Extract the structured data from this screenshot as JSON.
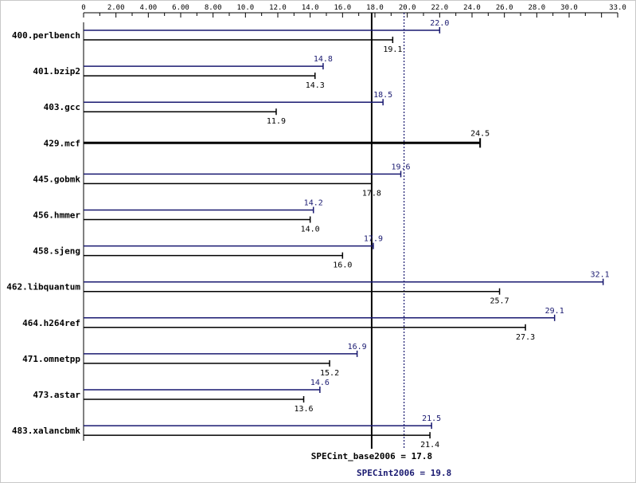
{
  "chart_data": {
    "type": "bar",
    "orientation": "horizontal",
    "xlim": [
      0,
      33
    ],
    "tick_labels": [
      "0",
      "2.00",
      "4.00",
      "6.00",
      "8.00",
      "10.0",
      "12.0",
      "14.0",
      "16.0",
      "18.0",
      "20.0",
      "22.0",
      "24.0",
      "26.0",
      "28.0",
      "30.0",
      "33.0"
    ],
    "grid": false,
    "categories": [
      "400.perlbench",
      "401.bzip2",
      "403.gcc",
      "429.mcf",
      "445.gobmk",
      "456.hmmer",
      "458.sjeng",
      "462.libquantum",
      "464.h264ref",
      "471.omnetpp",
      "473.astar",
      "483.xalancbmk"
    ],
    "series": [
      {
        "key": "peak",
        "color": "#191970",
        "values": [
          22.0,
          14.8,
          18.5,
          null,
          19.6,
          14.2,
          17.9,
          32.1,
          29.1,
          16.9,
          14.6,
          21.5
        ],
        "labels": [
          "22.0",
          "14.8",
          "18.5",
          "",
          "19.6",
          "14.2",
          "17.9",
          "32.1",
          "29.1",
          "16.9",
          "14.6",
          "21.5"
        ]
      },
      {
        "key": "base",
        "color": "#000000",
        "values": [
          19.1,
          14.3,
          11.9,
          24.5,
          17.8,
          14.0,
          16.0,
          25.7,
          27.3,
          15.2,
          13.6,
          21.4
        ],
        "labels": [
          "19.1",
          "14.3",
          "11.9",
          "24.5",
          "17.8",
          "14.0",
          "16.0",
          "25.7",
          "27.3",
          "15.2",
          "13.6",
          "21.4"
        ]
      }
    ],
    "reference_lines": [
      {
        "key": "base",
        "value": 17.8,
        "label": "SPECint_base2006 = 17.8",
        "color": "#000000",
        "style": "solid"
      },
      {
        "key": "peak",
        "value": 19.8,
        "label": "SPECint2006 = 19.8",
        "color": "#191970",
        "style": "dotted"
      }
    ]
  }
}
